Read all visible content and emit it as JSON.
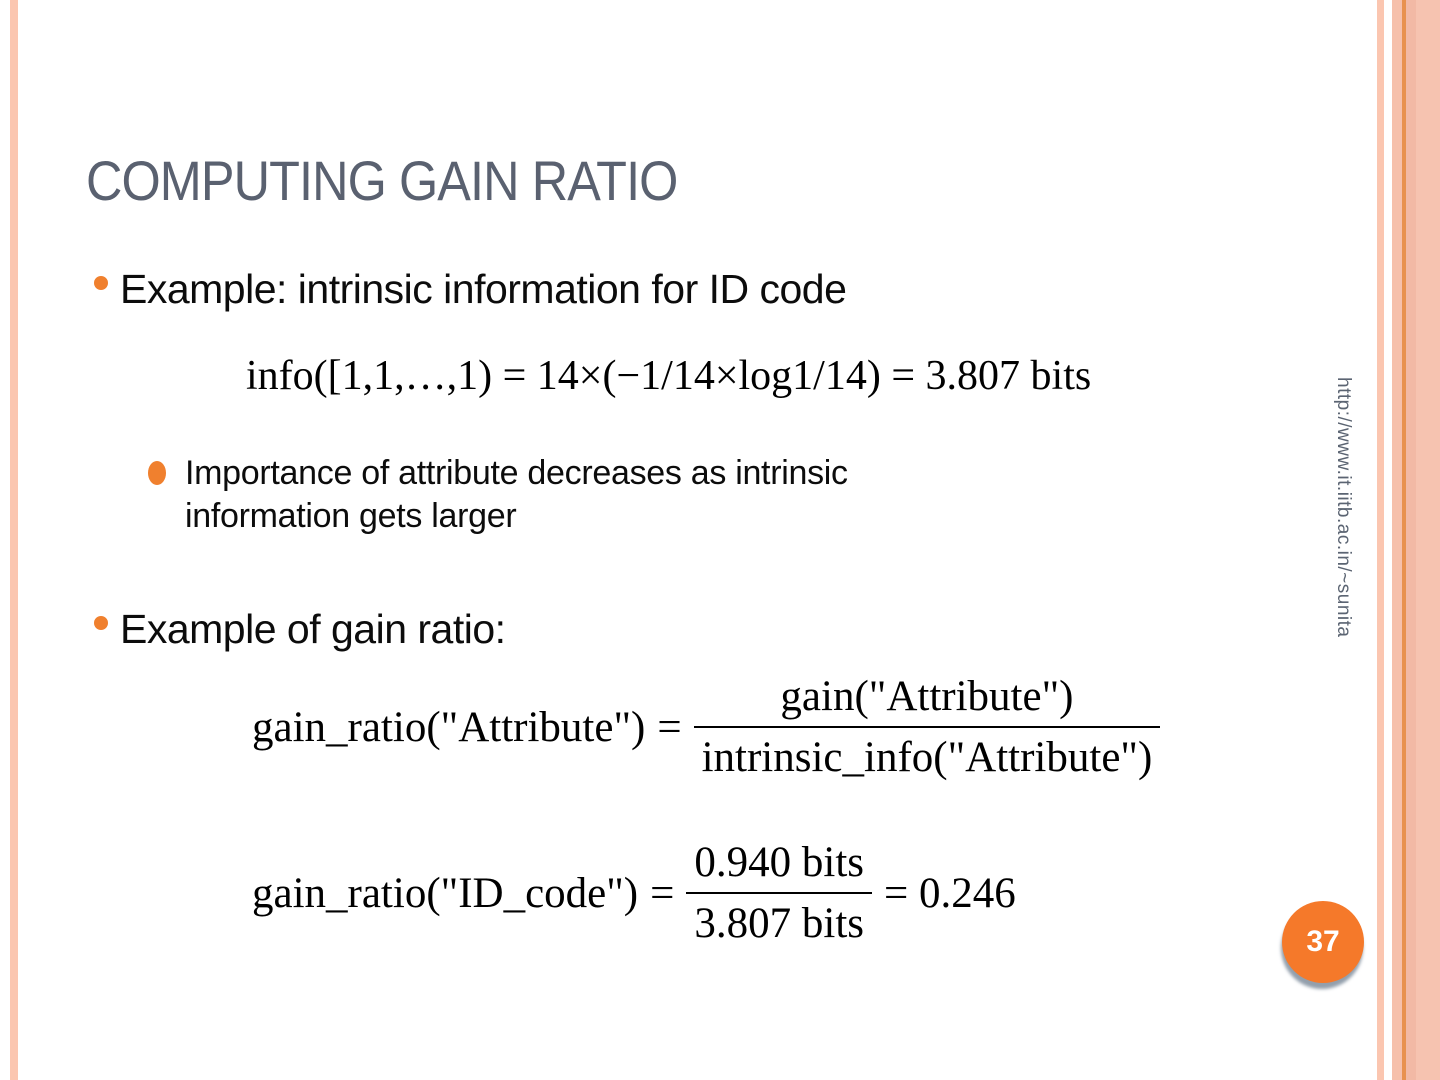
{
  "slide": {
    "title": "COMPUTING GAIN RATIO",
    "bullet_1": {
      "marker": "hollow-circle",
      "text": "Example: intrinsic information for ID code"
    },
    "formula_intrinsic_info": "info([1,1,…,1) = 14×(−1/14×log1/14) = 3.807 bits",
    "sub_bullet": {
      "marker": "filled-dot",
      "lines": {
        "0": "Importance of attribute decreases as intrinsic",
        "1": "information gets larger"
      }
    },
    "bullet_2": {
      "marker": "hollow-circle",
      "text": "Example of gain ratio:"
    },
    "formula_gain_ratio_generic": {
      "lhs": "gain_ratio(\"Attribute\")",
      "equals": "=",
      "numerator": "gain(\"Attribute\")",
      "denominator": "intrinsic_info(\"Attribute\")"
    },
    "formula_gain_ratio_id_code": {
      "lhs": "gain_ratio(\"ID_code\")",
      "equals": "=",
      "numerator": "0.940 bits",
      "denominator": "3.807 bits",
      "result": "= 0.246"
    },
    "sidebar_url": "http://www.it.iitb.ac.in/~sunita",
    "page_number": "37"
  },
  "colors": {
    "accent_orange": "#f0802e",
    "badge_orange": "#f5792a",
    "stripe_salmon": "#fbc6b0",
    "stripe_dark_line": "#e8914f",
    "title_gray": "#5a6170",
    "sidebar_text_gray": "#5b6472"
  }
}
